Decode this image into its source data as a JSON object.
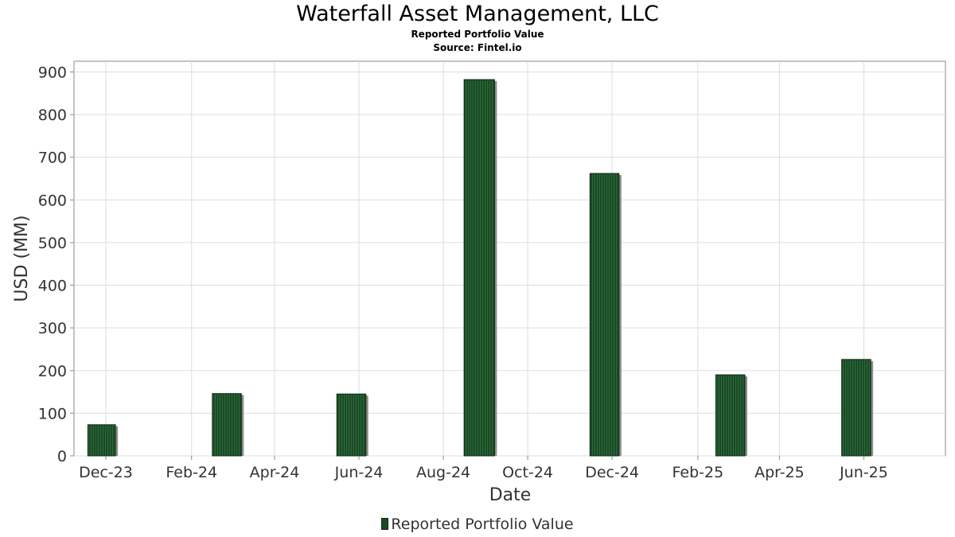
{
  "chart_data": {
    "type": "bar",
    "title": "Waterfall Asset Management, LLC",
    "subtitle": "Reported Portfolio Value",
    "source": "Source: Fintel.io",
    "xlabel": "Date",
    "ylabel": "USD (MM)",
    "ylim": [
      0,
      925
    ],
    "yticks": [
      0,
      100,
      200,
      300,
      400,
      500,
      600,
      700,
      800,
      900
    ],
    "xlim": [
      "2023-11-08",
      "2025-07-30"
    ],
    "xticks": [
      {
        "label": "Dec-23",
        "date": "2023-12-01"
      },
      {
        "label": "Feb-24",
        "date": "2024-02-01"
      },
      {
        "label": "Apr-24",
        "date": "2024-04-01"
      },
      {
        "label": "Jun-24",
        "date": "2024-06-01"
      },
      {
        "label": "Aug-24",
        "date": "2024-08-01"
      },
      {
        "label": "Oct-24",
        "date": "2024-10-01"
      },
      {
        "label": "Dec-24",
        "date": "2024-12-01"
      },
      {
        "label": "Feb-25",
        "date": "2025-02-01"
      },
      {
        "label": "Apr-25",
        "date": "2025-04-01"
      },
      {
        "label": "Jun-25",
        "date": "2025-06-01"
      }
    ],
    "grid": true,
    "legend_position": "bottom-center",
    "series": [
      {
        "name": "Reported Portfolio Value",
        "color": "#1a4a25",
        "points": [
          {
            "start": "2023-11-18",
            "end": "2023-12-08",
            "value": 73
          },
          {
            "start": "2024-02-16",
            "end": "2024-03-08",
            "value": 146
          },
          {
            "start": "2024-05-16",
            "end": "2024-06-06",
            "value": 145
          },
          {
            "start": "2024-08-16",
            "end": "2024-09-07",
            "value": 882
          },
          {
            "start": "2024-11-15",
            "end": "2024-12-06",
            "value": 662
          },
          {
            "start": "2025-02-14",
            "end": "2025-03-07",
            "value": 190
          },
          {
            "start": "2025-05-16",
            "end": "2025-06-06",
            "value": 226
          }
        ]
      }
    ]
  }
}
